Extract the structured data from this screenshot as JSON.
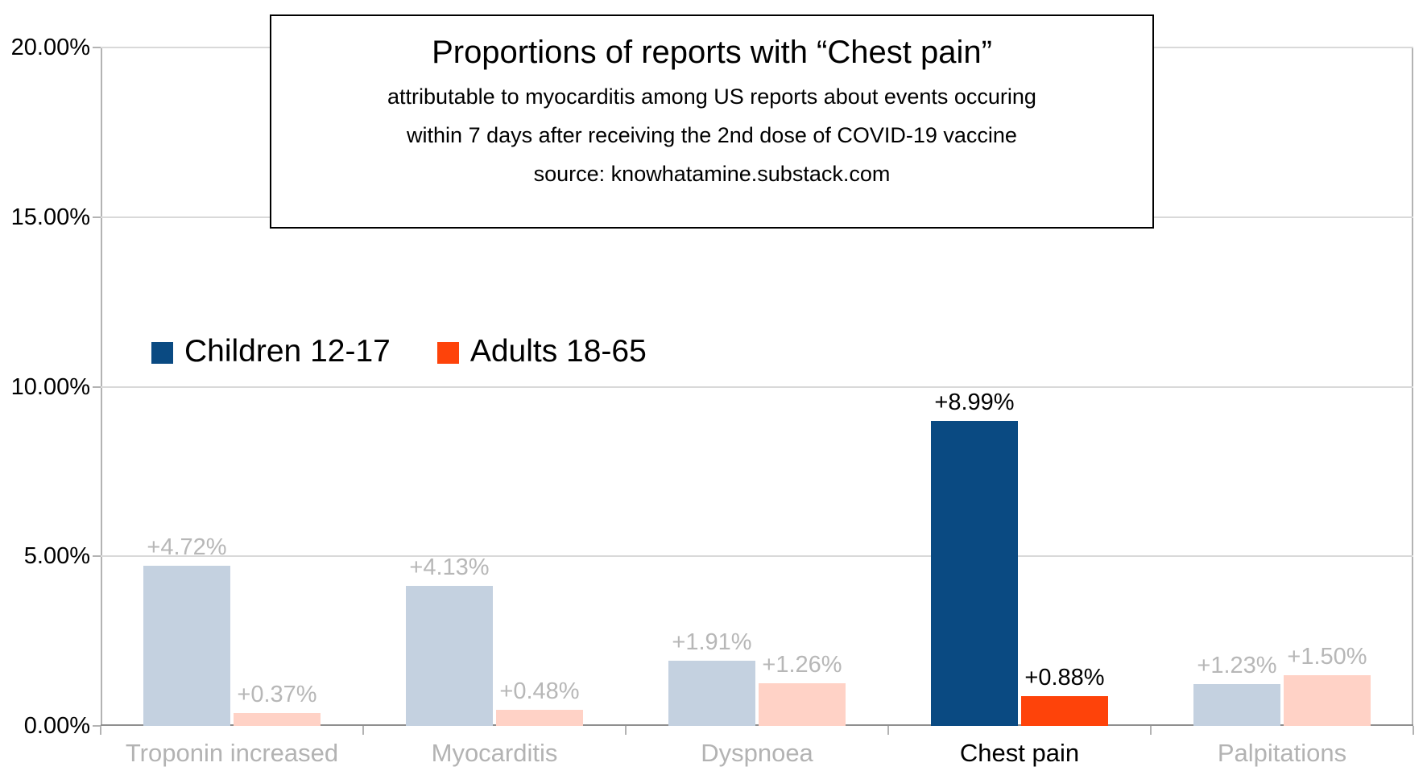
{
  "chart_data": {
    "type": "bar",
    "title": "Proportions of reports with “Chest pain”",
    "subtitle_lines": [
      "attributable to myocarditis among US reports about events occuring",
      "within 7 days after receiving the 2nd dose of COVID-19 vaccine"
    ],
    "source": "source: knowhatamine.substack.com",
    "categories": [
      "Troponin increased",
      "Myocarditis",
      "Dyspnoea",
      "Chest pain",
      "Palpitations"
    ],
    "series": [
      {
        "name": "Children 12-17",
        "values": [
          4.72,
          4.13,
          1.91,
          8.99,
          1.23
        ],
        "data_labels": [
          "+4.72%",
          "+4.13%",
          "+1.91%",
          "+8.99%",
          "+1.23%"
        ],
        "color": "#0a4a82",
        "color_muted": "#c4d1e0"
      },
      {
        "name": "Adults 18-65",
        "values": [
          0.37,
          0.48,
          1.26,
          0.88,
          1.5
        ],
        "data_labels": [
          "+0.37%",
          "+0.48%",
          "+1.26%",
          "+0.88%",
          "+1.50%"
        ],
        "color": "#fe430a",
        "color_muted": "#ffd2c6"
      }
    ],
    "highlight_category": "Chest pain",
    "y_axis": {
      "ticks": [
        0,
        5,
        10,
        15,
        20
      ],
      "labels": [
        "0.00%",
        "5.00%",
        "10.00%",
        "15.00%",
        "20.00%"
      ]
    },
    "ylim": [
      0,
      20
    ],
    "xlabel": "",
    "ylabel": "",
    "grid": "horizontal",
    "legend_position": "inside-upper-left",
    "muted_value_label_color": "#b7b7b7",
    "muted_category_label_color": "#b3b3b3",
    "highlight_label_color": "#000000"
  }
}
